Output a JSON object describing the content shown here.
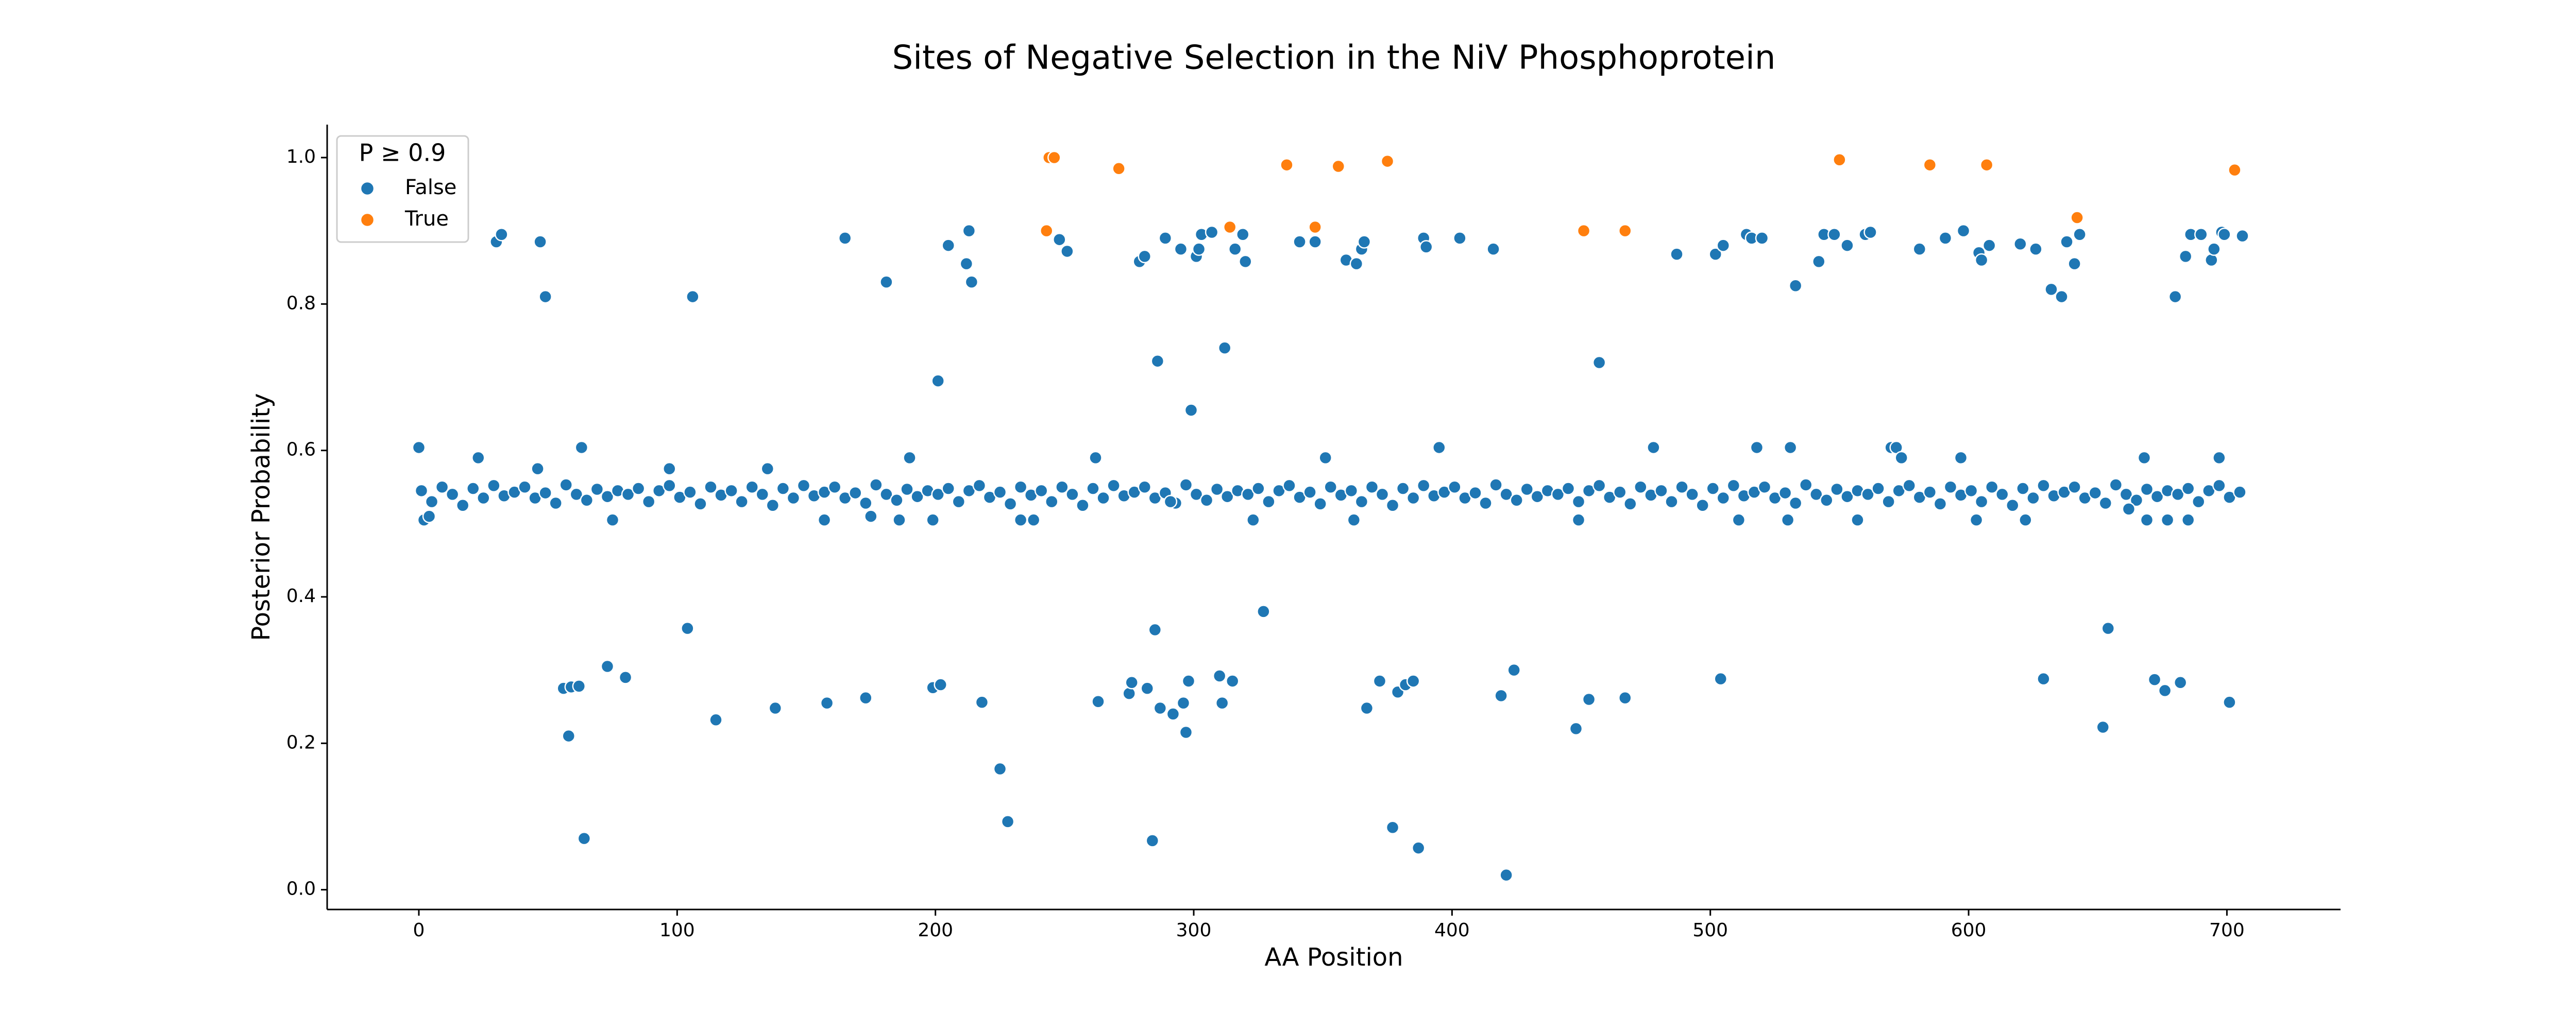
{
  "chart_data": {
    "type": "scatter",
    "title": "Sites of Negative Selection in the NiV Phosphoprotein",
    "x_label": "AA Position",
    "y_label": "Posterior Probability",
    "legend_title": "P ≥ 0.9",
    "legend": "upper left",
    "xlim": [
      -35.5,
      744
    ],
    "ylim": [
      -0.027,
      1.045
    ],
    "xticks": [
      0,
      100,
      200,
      300,
      400,
      500,
      600,
      700
    ],
    "yticks": [
      {
        "value": 0,
        "label": "0.0"
      },
      0.2,
      0.4,
      0.6,
      0.8,
      {
        "value": 1,
        "label": "1.0"
      }
    ],
    "series": [
      {
        "name": "False",
        "color": "#1f77b4",
        "x": [
          1,
          5,
          9,
          13,
          17,
          21,
          25,
          29,
          33,
          37,
          41,
          45,
          49,
          53,
          57,
          61,
          65,
          69,
          73,
          77,
          81,
          85,
          89,
          93,
          97,
          101,
          105,
          109,
          113,
          117,
          121,
          125,
          129,
          133,
          137,
          141,
          145,
          149,
          153,
          157,
          161,
          165,
          169,
          173,
          177,
          181,
          185,
          189,
          193,
          197,
          201,
          205,
          209,
          213,
          217,
          221,
          225,
          229,
          233,
          237,
          241,
          245,
          249,
          253,
          257,
          261,
          265,
          269,
          273,
          277,
          281,
          285,
          289,
          293,
          297,
          301,
          305,
          309,
          313,
          317,
          321,
          325,
          329,
          333,
          337,
          341,
          345,
          349,
          353,
          357,
          361,
          365,
          369,
          373,
          377,
          381,
          385,
          389,
          393,
          397,
          401,
          405,
          409,
          413,
          417,
          421,
          425,
          429,
          433,
          437,
          441,
          445,
          449,
          453,
          457,
          461,
          465,
          469,
          473,
          477,
          481,
          485,
          489,
          493,
          497,
          501,
          505,
          509,
          513,
          517,
          521,
          525,
          529,
          533,
          537,
          541,
          545,
          549,
          553,
          557,
          561,
          565,
          569,
          573,
          577,
          581,
          585,
          589,
          593,
          597,
          601,
          605,
          609,
          613,
          617,
          621,
          625,
          629,
          633,
          637,
          641,
          645,
          649,
          653,
          657,
          661,
          665,
          669,
          673,
          677,
          681,
          685,
          689,
          693,
          697,
          701,
          705,
          0,
          2,
          4,
          23,
          30,
          32,
          46,
          47,
          49,
          56,
          58,
          59,
          62,
          63,
          64,
          73,
          75,
          80,
          97,
          104,
          106,
          115,
          135,
          138,
          157,
          158,
          165,
          173,
          175,
          181,
          186,
          190,
          199,
          199,
          201,
          202,
          205,
          212,
          213,
          214,
          218,
          225,
          228,
          233,
          238,
          248,
          251,
          262,
          263,
          275,
          276,
          279,
          281,
          282,
          284,
          285,
          286,
          287,
          289,
          291,
          292,
          295,
          296,
          297,
          298,
          299,
          301,
          302,
          303,
          307,
          310,
          311,
          312,
          315,
          316,
          319,
          320,
          323,
          327,
          341,
          347,
          351,
          359,
          362,
          363,
          365,
          366,
          367,
          372,
          377,
          379,
          382,
          385,
          387,
          389,
          390,
          395,
          403,
          416,
          419,
          421,
          424,
          448,
          449,
          453,
          457,
          467,
          478,
          487,
          502,
          504,
          505,
          511,
          514,
          516,
          518,
          520,
          530,
          531,
          533,
          542,
          544,
          548,
          553,
          557,
          560,
          562,
          570,
          572,
          574,
          581,
          591,
          597,
          598,
          603,
          604,
          605,
          608,
          620,
          622,
          626,
          629,
          632,
          636,
          638,
          641,
          643,
          652,
          654,
          662,
          668,
          669,
          672,
          676,
          677,
          680,
          682,
          684,
          685,
          686,
          690,
          694,
          695,
          697,
          698,
          699,
          701,
          706
        ],
        "values": [
          0.545,
          0.53,
          0.55,
          0.54,
          0.525,
          0.548,
          0.535,
          0.552,
          0.538,
          0.543,
          0.55,
          0.535,
          0.542,
          0.528,
          0.553,
          0.54,
          0.532,
          0.547,
          0.537,
          0.545,
          0.54,
          0.548,
          0.53,
          0.545,
          0.552,
          0.536,
          0.543,
          0.527,
          0.55,
          0.539,
          0.545,
          0.53,
          0.55,
          0.54,
          0.525,
          0.548,
          0.535,
          0.552,
          0.538,
          0.543,
          0.55,
          0.535,
          0.542,
          0.528,
          0.553,
          0.54,
          0.532,
          0.547,
          0.537,
          0.545,
          0.54,
          0.548,
          0.53,
          0.545,
          0.552,
          0.536,
          0.543,
          0.527,
          0.55,
          0.539,
          0.545,
          0.53,
          0.55,
          0.54,
          0.525,
          0.548,
          0.535,
          0.552,
          0.538,
          0.543,
          0.55,
          0.535,
          0.542,
          0.528,
          0.553,
          0.54,
          0.532,
          0.547,
          0.537,
          0.545,
          0.54,
          0.548,
          0.53,
          0.545,
          0.552,
          0.536,
          0.543,
          0.527,
          0.55,
          0.539,
          0.545,
          0.53,
          0.55,
          0.54,
          0.525,
          0.548,
          0.535,
          0.552,
          0.538,
          0.543,
          0.55,
          0.535,
          0.542,
          0.528,
          0.553,
          0.54,
          0.532,
          0.547,
          0.537,
          0.545,
          0.54,
          0.548,
          0.53,
          0.545,
          0.552,
          0.536,
          0.543,
          0.527,
          0.55,
          0.539,
          0.545,
          0.53,
          0.55,
          0.54,
          0.525,
          0.548,
          0.535,
          0.552,
          0.538,
          0.543,
          0.55,
          0.535,
          0.542,
          0.528,
          0.553,
          0.54,
          0.532,
          0.547,
          0.537,
          0.545,
          0.54,
          0.548,
          0.53,
          0.545,
          0.552,
          0.536,
          0.543,
          0.527,
          0.55,
          0.539,
          0.545,
          0.53,
          0.55,
          0.54,
          0.525,
          0.548,
          0.535,
          0.552,
          0.538,
          0.543,
          0.55,
          0.535,
          0.542,
          0.528,
          0.553,
          0.54,
          0.532,
          0.547,
          0.537,
          0.545,
          0.54,
          0.548,
          0.53,
          0.545,
          0.552,
          0.536,
          0.543,
          0.604,
          0.505,
          0.51,
          0.59,
          0.885,
          0.895,
          0.575,
          0.885,
          0.81,
          0.275,
          0.21,
          0.277,
          0.278,
          0.604,
          0.07,
          0.305,
          0.505,
          0.29,
          0.575,
          0.357,
          0.81,
          0.232,
          0.575,
          0.248,
          0.505,
          0.255,
          0.89,
          0.262,
          0.51,
          0.83,
          0.505,
          0.59,
          0.505,
          0.276,
          0.695,
          0.28,
          0.88,
          0.855,
          0.9,
          0.83,
          0.256,
          0.165,
          0.093,
          0.505,
          0.505,
          0.888,
          0.872,
          0.59,
          0.257,
          0.268,
          0.283,
          0.858,
          0.865,
          0.275,
          0.067,
          0.355,
          0.722,
          0.248,
          0.89,
          0.53,
          0.24,
          0.875,
          0.255,
          0.215,
          0.285,
          0.655,
          0.865,
          0.875,
          0.895,
          0.898,
          0.292,
          0.255,
          0.74,
          0.285,
          0.875,
          0.895,
          0.858,
          0.505,
          0.38,
          0.885,
          0.885,
          0.59,
          0.86,
          0.505,
          0.855,
          0.875,
          0.885,
          0.248,
          0.285,
          0.085,
          0.27,
          0.28,
          0.285,
          0.057,
          0.89,
          0.878,
          0.604,
          0.89,
          0.875,
          0.265,
          0.02,
          0.3,
          0.22,
          0.505,
          0.26,
          0.72,
          0.262,
          0.604,
          0.868,
          0.868,
          0.288,
          0.88,
          0.505,
          0.895,
          0.89,
          0.604,
          0.89,
          0.505,
          0.604,
          0.825,
          0.858,
          0.895,
          0.895,
          0.88,
          0.505,
          0.895,
          0.898,
          0.604,
          0.604,
          0.59,
          0.875,
          0.89,
          0.59,
          0.9,
          0.505,
          0.87,
          0.86,
          0.88,
          0.882,
          0.505,
          0.875,
          0.288,
          0.82,
          0.81,
          0.885,
          0.855,
          0.895,
          0.222,
          0.357,
          0.52,
          0.59,
          0.505,
          0.287,
          0.272,
          0.505,
          0.81,
          0.283,
          0.865,
          0.505,
          0.895,
          0.895,
          0.86,
          0.875,
          0.59,
          0.898,
          0.895,
          0.256,
          0.893
        ]
      },
      {
        "name": "True",
        "color": "#ff7f0e",
        "x": [
          243,
          244,
          246,
          271,
          314,
          336,
          347,
          356,
          375,
          451,
          467,
          550,
          585,
          607,
          642,
          703
        ],
        "values": [
          0.9,
          1.0,
          1.0,
          0.985,
          0.905,
          0.99,
          0.905,
          0.988,
          0.995,
          0.9,
          0.9,
          0.997,
          0.99,
          0.99,
          0.918,
          0.983
        ]
      }
    ]
  }
}
